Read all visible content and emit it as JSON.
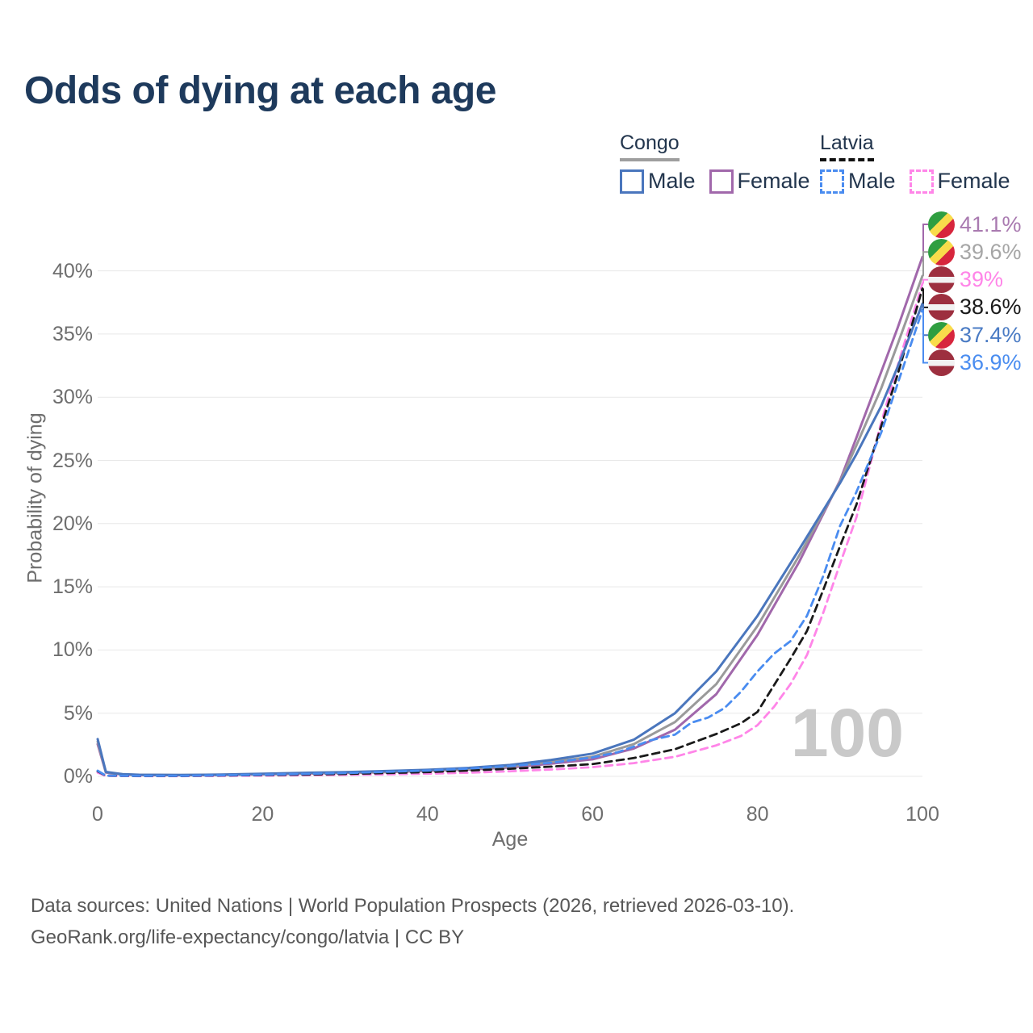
{
  "header": {
    "title": "Odds of dying at each age"
  },
  "legend": {
    "groups": [
      {
        "name": "Congo",
        "underline": {
          "style": "solid",
          "color": "#9e9e9e"
        },
        "items": [
          {
            "label": "Male",
            "series": "congo_male"
          },
          {
            "label": "Female",
            "series": "congo_female"
          }
        ]
      },
      {
        "name": "Latvia",
        "underline": {
          "style": "dashed",
          "color": "#111111"
        },
        "items": [
          {
            "label": "Male",
            "series": "latvia_male"
          },
          {
            "label": "Female",
            "series": "latvia_female"
          }
        ]
      }
    ]
  },
  "chart_data": {
    "type": "line",
    "title": "Odds of dying at each age",
    "xlabel": "Age",
    "ylabel": "Probability of dying",
    "watermark": "100",
    "grid": true,
    "grid_color": "#e8e8e8",
    "legend_position": "top-right",
    "xlim": [
      0,
      100
    ],
    "ylim": [
      0,
      43
    ],
    "x_ticks": [
      {
        "value": 0,
        "label": "0"
      },
      {
        "value": 20,
        "label": "20"
      },
      {
        "value": 40,
        "label": "40"
      },
      {
        "value": 60,
        "label": "60"
      },
      {
        "value": 80,
        "label": "80"
      },
      {
        "value": 100,
        "label": "100"
      }
    ],
    "y_ticks": [
      {
        "value": 0,
        "label": "0%"
      },
      {
        "value": 5,
        "label": "5%"
      },
      {
        "value": 10,
        "label": "10%"
      },
      {
        "value": 15,
        "label": "15%"
      },
      {
        "value": 20,
        "label": "20%"
      },
      {
        "value": 25,
        "label": "25%"
      },
      {
        "value": 30,
        "label": "30%"
      },
      {
        "value": 35,
        "label": "35%"
      },
      {
        "value": 40,
        "label": "40%"
      }
    ],
    "flags": {
      "congo": {
        "colors": [
          "#2f9e41",
          "#f9dc4b",
          "#d7263d"
        ],
        "pattern": "diagonal-stripes"
      },
      "latvia": {
        "colors": [
          "#9d2f3f",
          "#f2f2f2"
        ],
        "pattern": "horizontal-band"
      }
    },
    "series": [
      {
        "id": "congo_female",
        "name": "Congo Female",
        "country": "Congo",
        "sex": "female",
        "color": "#a168ab",
        "label_color": "#a97ab0",
        "dash": false,
        "end_label": "41.1%",
        "flag": "congo",
        "points": [
          [
            0,
            2.55
          ],
          [
            1,
            0.3
          ],
          [
            3,
            0.15
          ],
          [
            5,
            0.11
          ],
          [
            10,
            0.09
          ],
          [
            15,
            0.11
          ],
          [
            20,
            0.16
          ],
          [
            25,
            0.21
          ],
          [
            30,
            0.27
          ],
          [
            35,
            0.33
          ],
          [
            40,
            0.42
          ],
          [
            45,
            0.54
          ],
          [
            50,
            0.7
          ],
          [
            55,
            1.0
          ],
          [
            60,
            1.35
          ],
          [
            65,
            2.2
          ],
          [
            70,
            3.7
          ],
          [
            75,
            6.5
          ],
          [
            80,
            11.2
          ],
          [
            85,
            16.9
          ],
          [
            90,
            23.4
          ],
          [
            92,
            26.8
          ],
          [
            95,
            32.0
          ],
          [
            97,
            35.5
          ],
          [
            100,
            41.1
          ]
        ]
      },
      {
        "id": "congo_both",
        "name": "Congo (both sexes)",
        "country": "Congo",
        "sex": "both",
        "color": "#9a9a9a",
        "label_color": "#a6a6a6",
        "dash": false,
        "end_label": "39.6%",
        "flag": "congo",
        "points": [
          [
            0,
            2.75
          ],
          [
            1,
            0.33
          ],
          [
            3,
            0.16
          ],
          [
            5,
            0.12
          ],
          [
            10,
            0.1
          ],
          [
            15,
            0.12
          ],
          [
            20,
            0.18
          ],
          [
            25,
            0.24
          ],
          [
            30,
            0.3
          ],
          [
            35,
            0.37
          ],
          [
            40,
            0.47
          ],
          [
            45,
            0.6
          ],
          [
            50,
            0.8
          ],
          [
            55,
            1.15
          ],
          [
            60,
            1.55
          ],
          [
            65,
            2.55
          ],
          [
            70,
            4.3
          ],
          [
            75,
            7.3
          ],
          [
            80,
            11.9
          ],
          [
            85,
            17.4
          ],
          [
            90,
            23.3
          ],
          [
            92,
            26.2
          ],
          [
            95,
            30.7
          ],
          [
            97,
            34.2
          ],
          [
            100,
            39.6
          ]
        ]
      },
      {
        "id": "latvia_female",
        "name": "Latvia Female",
        "country": "Latvia",
        "sex": "female",
        "color": "#ff85e8",
        "label_color": "#ff85e8",
        "dash": true,
        "end_label": "39%",
        "flag": "latvia",
        "points": [
          [
            0,
            0.3
          ],
          [
            1,
            0.04
          ],
          [
            5,
            0.02
          ],
          [
            10,
            0.02
          ],
          [
            15,
            0.04
          ],
          [
            20,
            0.06
          ],
          [
            25,
            0.09
          ],
          [
            30,
            0.12
          ],
          [
            35,
            0.16
          ],
          [
            40,
            0.21
          ],
          [
            45,
            0.29
          ],
          [
            50,
            0.4
          ],
          [
            55,
            0.54
          ],
          [
            60,
            0.73
          ],
          [
            65,
            1.05
          ],
          [
            70,
            1.55
          ],
          [
            75,
            2.45
          ],
          [
            78,
            3.2
          ],
          [
            80,
            4.05
          ],
          [
            82,
            5.5
          ],
          [
            84,
            7.3
          ],
          [
            86,
            9.6
          ],
          [
            88,
            13.0
          ],
          [
            90,
            16.8
          ],
          [
            92,
            20.5
          ],
          [
            95,
            28.0
          ],
          [
            97,
            32.5
          ],
          [
            100,
            39.0
          ]
        ]
      },
      {
        "id": "latvia_both",
        "name": "Latvia (both sexes)",
        "country": "Latvia",
        "sex": "both",
        "color": "#1a1a1a",
        "label_color": "#1a1a1a",
        "dash": true,
        "end_label": "38.6%",
        "flag": "latvia",
        "points": [
          [
            0,
            0.4
          ],
          [
            1,
            0.05
          ],
          [
            5,
            0.03
          ],
          [
            10,
            0.03
          ],
          [
            15,
            0.07
          ],
          [
            20,
            0.1
          ],
          [
            25,
            0.14
          ],
          [
            30,
            0.19
          ],
          [
            35,
            0.26
          ],
          [
            40,
            0.34
          ],
          [
            45,
            0.46
          ],
          [
            50,
            0.6
          ],
          [
            55,
            0.77
          ],
          [
            60,
            0.97
          ],
          [
            65,
            1.45
          ],
          [
            70,
            2.15
          ],
          [
            75,
            3.35
          ],
          [
            78,
            4.2
          ],
          [
            80,
            5.1
          ],
          [
            82,
            7.2
          ],
          [
            84,
            9.3
          ],
          [
            86,
            11.5
          ],
          [
            88,
            14.8
          ],
          [
            90,
            18.2
          ],
          [
            92,
            21.5
          ],
          [
            95,
            27.7
          ],
          [
            97,
            31.8
          ],
          [
            100,
            38.6
          ]
        ]
      },
      {
        "id": "congo_male",
        "name": "Congo Male",
        "country": "Congo",
        "sex": "male",
        "color": "#4a76bd",
        "label_color": "#4a7bc4",
        "dash": false,
        "end_label": "37.4%",
        "flag": "congo",
        "points": [
          [
            0,
            2.95
          ],
          [
            1,
            0.35
          ],
          [
            3,
            0.18
          ],
          [
            5,
            0.13
          ],
          [
            10,
            0.11
          ],
          [
            15,
            0.14
          ],
          [
            20,
            0.21
          ],
          [
            25,
            0.28
          ],
          [
            30,
            0.34
          ],
          [
            35,
            0.42
          ],
          [
            40,
            0.52
          ],
          [
            45,
            0.67
          ],
          [
            50,
            0.9
          ],
          [
            55,
            1.3
          ],
          [
            60,
            1.8
          ],
          [
            65,
            2.9
          ],
          [
            70,
            5.0
          ],
          [
            75,
            8.3
          ],
          [
            80,
            12.7
          ],
          [
            85,
            17.9
          ],
          [
            90,
            23.2
          ],
          [
            92,
            25.5
          ],
          [
            95,
            29.3
          ],
          [
            97,
            32.4
          ],
          [
            100,
            37.4
          ]
        ]
      },
      {
        "id": "latvia_male",
        "name": "Latvia Male",
        "country": "Latvia",
        "sex": "male",
        "color": "#4a8cf0",
        "label_color": "#4a8df0",
        "dash": true,
        "end_label": "36.9%",
        "flag": "latvia",
        "points": [
          [
            0,
            0.45
          ],
          [
            1,
            0.06
          ],
          [
            5,
            0.04
          ],
          [
            10,
            0.04
          ],
          [
            15,
            0.09
          ],
          [
            20,
            0.13
          ],
          [
            25,
            0.19
          ],
          [
            30,
            0.26
          ],
          [
            35,
            0.36
          ],
          [
            40,
            0.46
          ],
          [
            45,
            0.62
          ],
          [
            50,
            0.82
          ],
          [
            55,
            1.08
          ],
          [
            60,
            1.5
          ],
          [
            63,
            1.9
          ],
          [
            65,
            2.35
          ],
          [
            67,
            2.85
          ],
          [
            70,
            3.3
          ],
          [
            72,
            4.25
          ],
          [
            74,
            4.65
          ],
          [
            76,
            5.4
          ],
          [
            78,
            6.7
          ],
          [
            80,
            8.3
          ],
          [
            82,
            9.7
          ],
          [
            84,
            10.7
          ],
          [
            86,
            12.7
          ],
          [
            88,
            15.9
          ],
          [
            90,
            19.8
          ],
          [
            92,
            22.5
          ],
          [
            95,
            27.2
          ],
          [
            100,
            36.9
          ]
        ]
      }
    ]
  },
  "footer": {
    "line1": "Data sources: United Nations | World Population Prospects (2026, retrieved 2026-03-10).",
    "line2": "GeoRank.org/life-expectancy/congo/latvia | CC BY"
  }
}
